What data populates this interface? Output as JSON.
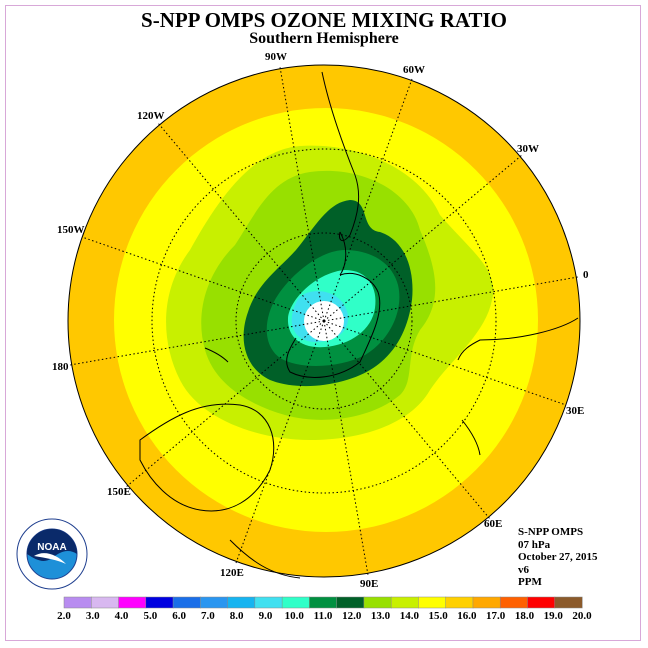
{
  "title": "S-NPP OMPS OZONE MIXING RATIO",
  "subtitle": "Southern Hemisphere",
  "longitude_labels": [
    "90W",
    "60W",
    "30W",
    "0",
    "30E",
    "60E",
    "90E",
    "120E",
    "150E",
    "180",
    "150W",
    "120W"
  ],
  "info": {
    "instrument": "S-NPP OMPS",
    "level": "07 hPa",
    "date": "October 27, 2015",
    "version": "v6",
    "units": "PPM"
  },
  "logo_text": "NOAA",
  "colorbar": {
    "ticks": [
      "2.0",
      "3.0",
      "4.0",
      "5.0",
      "6.0",
      "7.0",
      "8.0",
      "9.0",
      "10.0",
      "11.0",
      "12.0",
      "13.0",
      "14.0",
      "15.0",
      "16.0",
      "17.0",
      "18.0",
      "19.0",
      "20.0"
    ],
    "colors": [
      "#b88cf0",
      "#d8b8f0",
      "#ff00ff",
      "#0000e0",
      "#1a6ee8",
      "#2a96f0",
      "#16b4f0",
      "#40e0f0",
      "#30ffc8",
      "#009040",
      "#006028",
      "#98e000",
      "#c8f000",
      "#ffff00",
      "#ffd000",
      "#ffa800",
      "#ff6000",
      "#ff0000",
      "#8b5a2b"
    ]
  },
  "map_colors": {
    "ring_outer": "#ffc800",
    "ring_yellow": "#ffff00",
    "level_14": "#c8f000",
    "level_13": "#98e000",
    "level_12": "#006028",
    "level_11": "#009040",
    "level_10": "#30ffc8",
    "level_9": "#40e0f0",
    "pole": "#ffffff"
  }
}
